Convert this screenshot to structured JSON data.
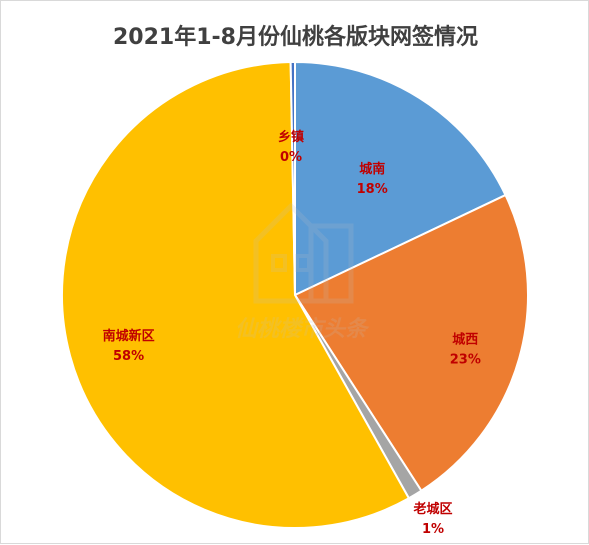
{
  "chart_data": {
    "type": "pie",
    "title": "2021年1-8月份仙桃各版块网签情况",
    "slices": [
      {
        "name": "城南",
        "value": 18,
        "label": "18%",
        "color": "#5B9BD5"
      },
      {
        "name": "城西",
        "value": 23,
        "label": "23%",
        "color": "#ED7D31"
      },
      {
        "name": "老城区",
        "value": 1,
        "label": "1%",
        "color": "#A5A5A5"
      },
      {
        "name": "南城新区",
        "value": 58,
        "label": "58%",
        "color": "#FFC000"
      },
      {
        "name": "乡镇",
        "value": 0.3,
        "label": "0%",
        "color": "#4472C4"
      }
    ]
  },
  "watermark": {
    "text": "仙桃楼市头条"
  }
}
